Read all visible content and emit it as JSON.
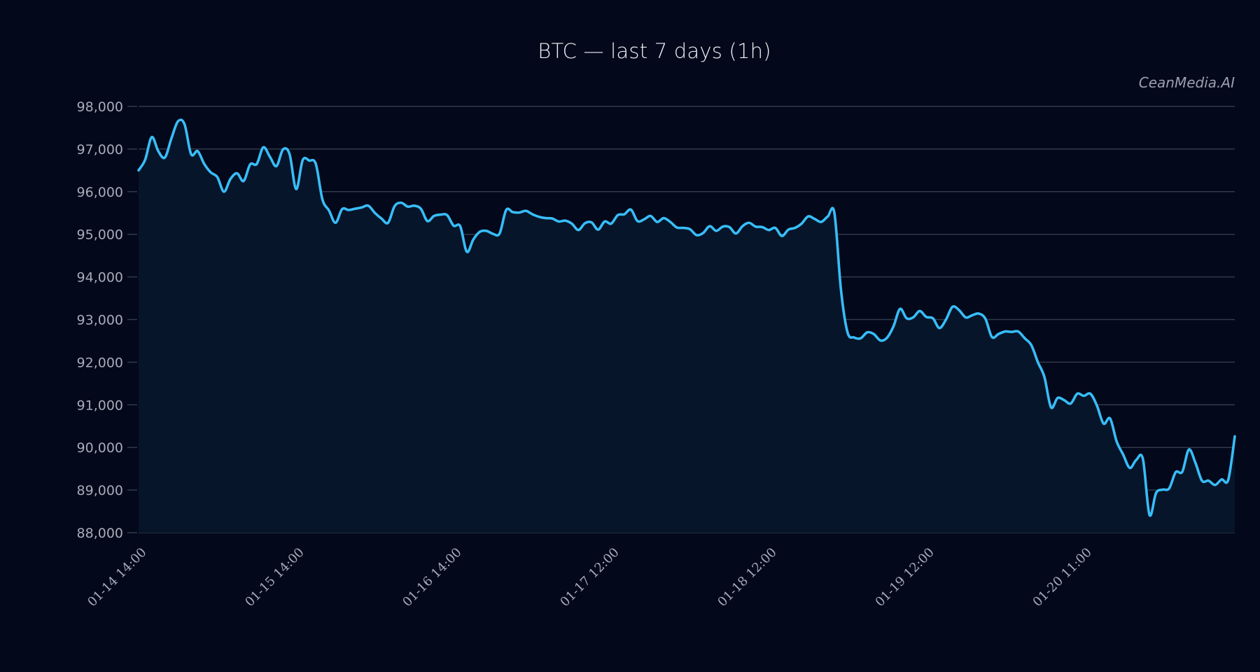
{
  "header": {
    "title": "BTC — last 7 days (1h)",
    "watermark": "CeanMedia.AI"
  },
  "colors": {
    "background": "#03081a",
    "plot_fill": "#07152a",
    "line": "#38bdf8",
    "grid": "#303a4a",
    "tick_text": "#a6acb8",
    "title_text": "#eef0f5"
  },
  "chart_data": {
    "type": "area",
    "title": "BTC — last 7 days (1h)",
    "xlabel": "",
    "ylabel": "",
    "ylim": [
      88000,
      98000
    ],
    "grid": true,
    "legend": null,
    "annotations": [
      "CeanMedia.AI"
    ],
    "yticks": [
      88000,
      89000,
      90000,
      91000,
      92000,
      93000,
      94000,
      95000,
      96000,
      97000,
      98000
    ],
    "ytick_labels": [
      "88,000",
      "89,000",
      "90,000",
      "91,000",
      "92,000",
      "93,000",
      "94,000",
      "95,000",
      "96,000",
      "97,000",
      "98,000"
    ],
    "xtick_labels": [
      "01-14 14:00",
      "01-15 14:00",
      "01-16 14:00",
      "01-17 12:00",
      "01-18 12:00",
      "01-19 12:00",
      "01-20 11:00"
    ],
    "xtick_index": [
      0,
      24,
      48,
      72,
      96,
      120,
      144
    ],
    "series": [
      {
        "name": "BTC",
        "interval": "1h",
        "values": [
          96500,
          96750,
          97280,
          96950,
          96800,
          97250,
          97650,
          97580,
          96880,
          96950,
          96650,
          96450,
          96340,
          96000,
          96300,
          96430,
          96250,
          96640,
          96650,
          97040,
          96820,
          96600,
          96990,
          96880,
          96060,
          96740,
          96730,
          96650,
          95820,
          95560,
          95270,
          95590,
          95570,
          95600,
          95630,
          95670,
          95500,
          95370,
          95270,
          95660,
          95740,
          95650,
          95670,
          95600,
          95310,
          95430,
          95460,
          95450,
          95200,
          95190,
          94590,
          94880,
          95060,
          95080,
          95010,
          95020,
          95570,
          95520,
          95510,
          95550,
          95470,
          95410,
          95380,
          95370,
          95300,
          95320,
          95250,
          95100,
          95260,
          95280,
          95110,
          95300,
          95250,
          95450,
          95470,
          95580,
          95310,
          95350,
          95430,
          95290,
          95380,
          95290,
          95160,
          95150,
          95120,
          94980,
          95030,
          95190,
          95080,
          95180,
          95170,
          95020,
          95190,
          95270,
          95180,
          95170,
          95100,
          95150,
          94960,
          95110,
          95150,
          95250,
          95420,
          95360,
          95290,
          95420,
          95500,
          93700,
          92700,
          92580,
          92560,
          92700,
          92660,
          92510,
          92570,
          92840,
          93250,
          93030,
          93050,
          93200,
          93060,
          93030,
          92800,
          93000,
          93300,
          93220,
          93050,
          93100,
          93140,
          93020,
          92590,
          92660,
          92720,
          92710,
          92720,
          92560,
          92400,
          92000,
          91650,
          90940,
          91160,
          91110,
          91030,
          91260,
          91210,
          91260,
          90980,
          90560,
          90680,
          90140,
          89830,
          89520,
          89710,
          89730,
          88420,
          88930,
          89010,
          89040,
          89420,
          89430,
          89950,
          89640,
          89220,
          89220,
          89120,
          89250,
          89240,
          90260
        ]
      }
    ]
  }
}
